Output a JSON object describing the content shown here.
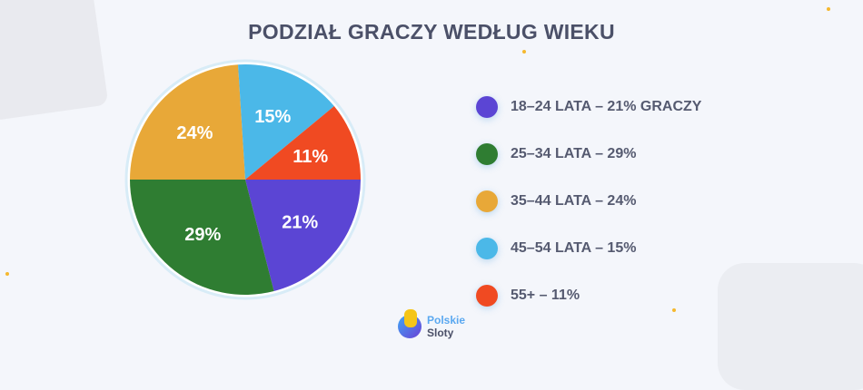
{
  "chart_data": {
    "type": "pie",
    "title": "PODZIAŁ GRACZY WEDŁUG WIEKU",
    "start_angle_deg": 90,
    "direction": "clockwise",
    "slices": [
      {
        "label": "18–24 LATA – 21% GRACZY",
        "value": 21,
        "data_label": "21%",
        "color": "#5b45d4"
      },
      {
        "label": "25–34 LATA – 29%",
        "value": 29,
        "data_label": "29%",
        "color": "#2f7d32"
      },
      {
        "label": "35–44 LATA – 24%",
        "value": 24,
        "data_label": "24%",
        "color": "#e8a838"
      },
      {
        "label": "45–54 LATA – 15%",
        "value": 15,
        "data_label": "15%",
        "color": "#4bb8e8"
      },
      {
        "label": "55+ – 11%",
        "value": 11,
        "data_label": "11%",
        "color": "#f04a22"
      }
    ],
    "legend_placement": "right"
  },
  "brand": {
    "line1": "Polskie",
    "line2": "Sloty",
    "line1_color": "#5aa8f0",
    "line2_color": "#4b5068"
  }
}
